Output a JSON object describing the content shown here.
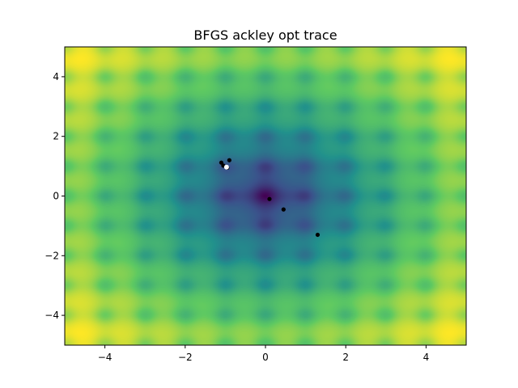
{
  "chart_data": {
    "type": "heatmap",
    "title": "BFGS ackley opt trace",
    "xlabel": "",
    "ylabel": "",
    "xlim": [
      -5,
      5
    ],
    "ylim": [
      -5,
      5
    ],
    "x_ticks": [
      -4,
      -2,
      0,
      2,
      4
    ],
    "y_ticks": [
      -4,
      -2,
      0,
      2,
      4
    ],
    "x_tick_labels": [
      "−4",
      "−2",
      "0",
      "2",
      "4"
    ],
    "y_tick_labels": [
      "−4",
      "−2",
      "0",
      "2",
      "4"
    ],
    "colormap": "viridis",
    "surface": "ackley",
    "grid": false,
    "legend": "none",
    "trace_points": [
      {
        "x": 1.3,
        "y": -1.3
      },
      {
        "x": 0.45,
        "y": -0.45
      },
      {
        "x": 0.1,
        "y": -0.1
      },
      {
        "x": -0.9,
        "y": 1.2
      },
      {
        "x": -1.1,
        "y": 1.12
      },
      {
        "x": -1.05,
        "y": 1.02
      },
      {
        "x": -0.95,
        "y": 0.95
      }
    ],
    "final_point": {
      "x": -0.97,
      "y": 0.97
    },
    "trace_color": "#000000",
    "final_color": "#ffffff"
  }
}
